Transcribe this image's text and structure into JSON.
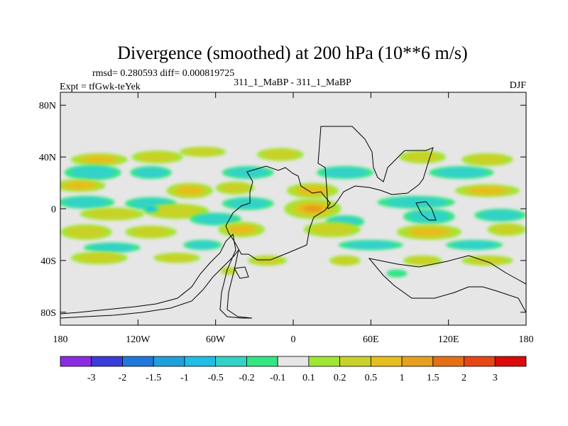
{
  "chart_data": {
    "type": "heatmap",
    "title": "Divergence (smoothed) at 200 hPa (10**6 m/s)",
    "stats_text": "rmsd= 0.280593  diff= 0.000819725",
    "left_label": "Expt = tfGwk-teYek",
    "center_label": "311_1_MaBP - 311_1_MaBP",
    "right_label": "DJF",
    "x_range": [
      -180,
      180
    ],
    "y_range": [
      -90,
      90
    ],
    "x_ticks": [
      {
        "value": -180,
        "label": "180"
      },
      {
        "value": -120,
        "label": "120W"
      },
      {
        "value": -60,
        "label": "60W"
      },
      {
        "value": 0,
        "label": "0"
      },
      {
        "value": 60,
        "label": "60E"
      },
      {
        "value": 120,
        "label": "120E"
      },
      {
        "value": 180,
        "label": "180"
      }
    ],
    "y_ticks": [
      {
        "value": 80,
        "label": "80N"
      },
      {
        "value": 40,
        "label": "40N"
      },
      {
        "value": 0,
        "label": "0"
      },
      {
        "value": -40,
        "label": "40S"
      },
      {
        "value": -80,
        "label": "80S"
      }
    ],
    "colorbar": {
      "colors": [
        "#8a2be2",
        "#3c3cdc",
        "#1e78dc",
        "#1ea0dc",
        "#1ebee6",
        "#32d2c8",
        "#32e682",
        "#e6e6e6",
        "#a0e632",
        "#c8d228",
        "#e6be1e",
        "#e6a01e",
        "#e66e14",
        "#e64614",
        "#dc0a0a"
      ],
      "labels": [
        "-3",
        "-2",
        "-1.5",
        "-1",
        "-0.5",
        "-0.2",
        "-0.1",
        "0.1",
        "0.2",
        "0.5",
        "1",
        "1.5",
        "2",
        "3"
      ]
    },
    "blobs": [
      {
        "lon": -150,
        "lat": 38,
        "rx": 22,
        "ry": 5,
        "v": 0.7
      },
      {
        "lon": -105,
        "lat": 40,
        "rx": 20,
        "ry": 5,
        "v": 0.6
      },
      {
        "lon": -70,
        "lat": 44,
        "rx": 18,
        "ry": 4,
        "v": 0.5
      },
      {
        "lon": -10,
        "lat": 42,
        "rx": 18,
        "ry": 5,
        "v": 0.6
      },
      {
        "lon": 100,
        "lat": 40,
        "rx": 18,
        "ry": 5,
        "v": 0.6
      },
      {
        "lon": 150,
        "lat": 38,
        "rx": 20,
        "ry": 5,
        "v": 0.6
      },
      {
        "lon": -155,
        "lat": 28,
        "rx": 22,
        "ry": 6,
        "v": -0.5
      },
      {
        "lon": -110,
        "lat": 28,
        "rx": 16,
        "ry": 5,
        "v": -0.4
      },
      {
        "lon": -35,
        "lat": 28,
        "rx": 20,
        "ry": 5,
        "v": -0.5
      },
      {
        "lon": 40,
        "lat": 28,
        "rx": 22,
        "ry": 5,
        "v": -0.5
      },
      {
        "lon": 130,
        "lat": 28,
        "rx": 25,
        "ry": 5,
        "v": -0.5
      },
      {
        "lon": -165,
        "lat": 18,
        "rx": 20,
        "ry": 5,
        "v": 0.7
      },
      {
        "lon": -80,
        "lat": 14,
        "rx": 18,
        "ry": 6,
        "v": 1.1
      },
      {
        "lon": -45,
        "lat": 16,
        "rx": 15,
        "ry": 5,
        "v": 0.6
      },
      {
        "lon": 15,
        "lat": 14,
        "rx": 20,
        "ry": 6,
        "v": 0.7
      },
      {
        "lon": 150,
        "lat": 14,
        "rx": 25,
        "ry": 5,
        "v": 0.7
      },
      {
        "lon": -160,
        "lat": 5,
        "rx": 22,
        "ry": 5,
        "v": -0.5
      },
      {
        "lon": -110,
        "lat": 4,
        "rx": 20,
        "ry": 5,
        "v": -0.5
      },
      {
        "lon": -35,
        "lat": 4,
        "rx": 20,
        "ry": 5,
        "v": -0.4
      },
      {
        "lon": 95,
        "lat": 5,
        "rx": 30,
        "ry": 5,
        "v": -0.6
      },
      {
        "lon": -140,
        "lat": -4,
        "rx": 25,
        "ry": 5,
        "v": 0.5
      },
      {
        "lon": -90,
        "lat": -2,
        "rx": 25,
        "ry": 6,
        "v": 0.5
      },
      {
        "lon": 15,
        "lat": 0,
        "rx": 22,
        "ry": 8,
        "v": 1.2
      },
      {
        "lon": -110,
        "lat": 0,
        "rx": 6,
        "ry": 3,
        "v": -1.1
      },
      {
        "lon": -60,
        "lat": -8,
        "rx": 20,
        "ry": 5,
        "v": -0.5
      },
      {
        "lon": 40,
        "lat": -10,
        "rx": 15,
        "ry": 5,
        "v": -0.4
      },
      {
        "lon": 105,
        "lat": -6,
        "rx": 20,
        "ry": 6,
        "v": -0.6
      },
      {
        "lon": 160,
        "lat": -5,
        "rx": 20,
        "ry": 5,
        "v": -0.5
      },
      {
        "lon": -160,
        "lat": -18,
        "rx": 20,
        "ry": 6,
        "v": 0.6
      },
      {
        "lon": -110,
        "lat": -18,
        "rx": 20,
        "ry": 5,
        "v": 0.5
      },
      {
        "lon": -40,
        "lat": -16,
        "rx": 18,
        "ry": 6,
        "v": 0.7
      },
      {
        "lon": 30,
        "lat": -16,
        "rx": 22,
        "ry": 6,
        "v": 0.6
      },
      {
        "lon": 105,
        "lat": -18,
        "rx": 25,
        "ry": 6,
        "v": 1.0
      },
      {
        "lon": 165,
        "lat": -16,
        "rx": 15,
        "ry": 5,
        "v": 0.6
      },
      {
        "lon": -140,
        "lat": -30,
        "rx": 22,
        "ry": 4,
        "v": -0.4
      },
      {
        "lon": -70,
        "lat": -28,
        "rx": 15,
        "ry": 4,
        "v": -0.3
      },
      {
        "lon": 60,
        "lat": -28,
        "rx": 25,
        "ry": 4,
        "v": -0.4
      },
      {
        "lon": 140,
        "lat": -28,
        "rx": 22,
        "ry": 4,
        "v": -0.3
      },
      {
        "lon": -150,
        "lat": -38,
        "rx": 22,
        "ry": 5,
        "v": 0.5
      },
      {
        "lon": -90,
        "lat": -38,
        "rx": 18,
        "ry": 4,
        "v": 0.4
      },
      {
        "lon": -20,
        "lat": -40,
        "rx": 15,
        "ry": 4,
        "v": 0.4
      },
      {
        "lon": 40,
        "lat": -40,
        "rx": 12,
        "ry": 4,
        "v": 0.4
      },
      {
        "lon": 100,
        "lat": -40,
        "rx": 15,
        "ry": 4,
        "v": 0.4
      },
      {
        "lon": 150,
        "lat": -40,
        "rx": 20,
        "ry": 4,
        "v": 0.4
      },
      {
        "lon": -50,
        "lat": -48,
        "rx": 6,
        "ry": 3,
        "v": 0.3
      },
      {
        "lon": 80,
        "lat": -50,
        "rx": 8,
        "ry": 3,
        "v": -0.2
      }
    ]
  }
}
